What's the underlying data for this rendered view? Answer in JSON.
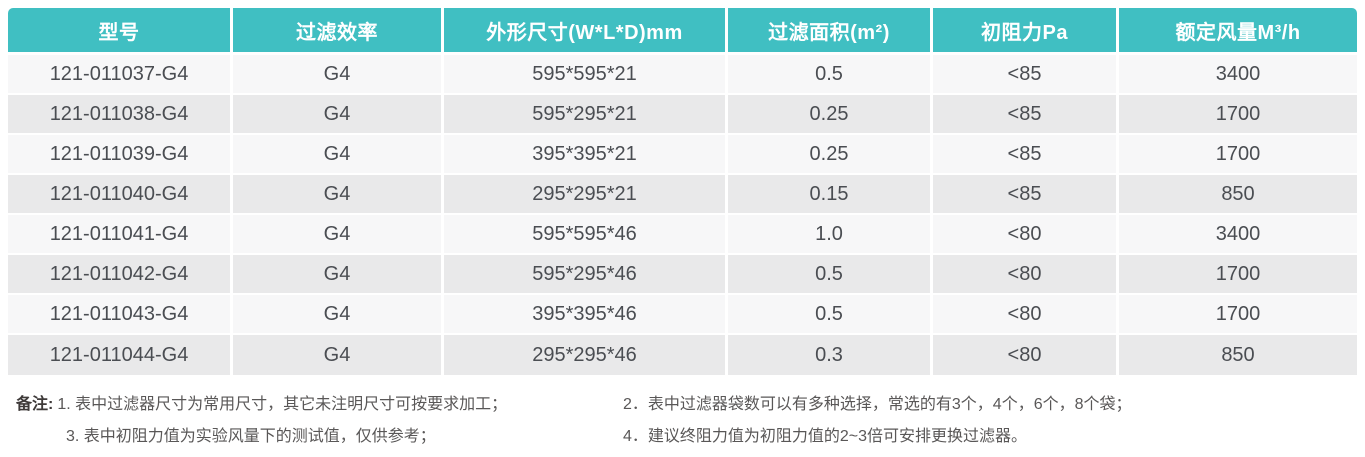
{
  "table": {
    "columns": [
      {
        "label": "型号"
      },
      {
        "label": "过滤效率"
      },
      {
        "label": "外形尺寸(W*L*D)mm"
      },
      {
        "label": "过滤面积(m²)"
      },
      {
        "label": "初阻力Pa"
      },
      {
        "label": "额定风量M³/h"
      }
    ],
    "rows": [
      [
        "121-011037-G4",
        "G4",
        "595*595*21",
        "0.5",
        "<85",
        "3400"
      ],
      [
        "121-011038-G4",
        "G4",
        "595*295*21",
        "0.25",
        "<85",
        "1700"
      ],
      [
        "121-011039-G4",
        "G4",
        "395*395*21",
        "0.25",
        "<85",
        "1700"
      ],
      [
        "121-011040-G4",
        "G4",
        "295*295*21",
        "0.15",
        "<85",
        "850"
      ],
      [
        "121-011041-G4",
        "G4",
        "595*595*46",
        "1.0",
        "<80",
        "3400"
      ],
      [
        "121-011042-G4",
        "G4",
        "595*295*46",
        "0.5",
        "<80",
        "1700"
      ],
      [
        "121-011043-G4",
        "G4",
        "395*395*46",
        "0.5",
        "<80",
        "1700"
      ],
      [
        "121-011044-G4",
        "G4",
        "295*295*46",
        "0.3",
        "<80",
        "850"
      ]
    ]
  },
  "notes": {
    "label": "备注:",
    "items": [
      "1. 表中过滤器尺寸为常用尺寸，其它未注明尺寸可按要求加工；",
      "2．表中过滤器袋数可以有多种选择，常选的有3个，4个，6个，8个袋；",
      "3. 表中初阻力值为实验风量下的测试值，仅供参考；",
      "4．建议终阻力值为初阻力值的2~3倍可安排更换过滤器。"
    ]
  },
  "colors": {
    "header_bg": "#40bfc2",
    "header_text": "#ffffff",
    "row_odd_bg": "#f7f7f8",
    "row_even_bg": "#e9e9ea",
    "cell_text": "#4a4d52",
    "note_text": "#595757"
  }
}
